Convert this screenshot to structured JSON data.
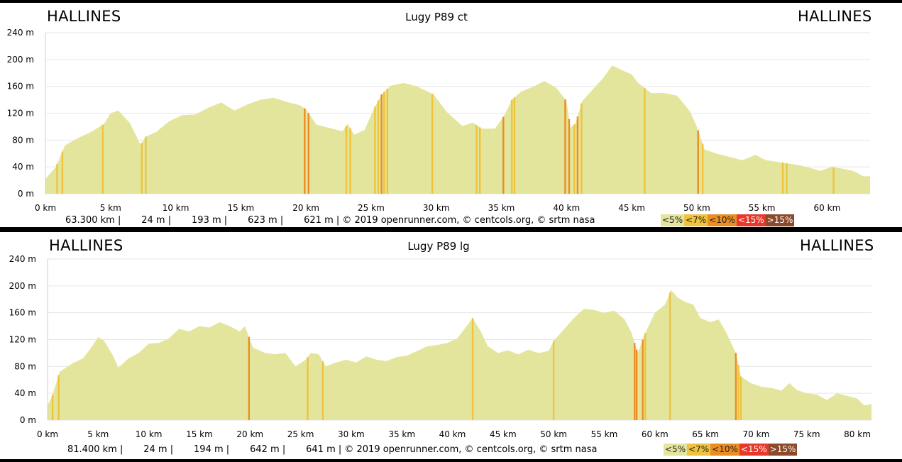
{
  "colors": {
    "fill": "#e4e59c",
    "grid": "#e6e6e6",
    "lt5": "#e4e59c",
    "lt7": "#efc33e",
    "lt10": "#ec8d22",
    "lt15": "#e8372b",
    "gt15": "#8c4a2b"
  },
  "legend": [
    "<5%",
    "<7%",
    "<10%",
    "<15%",
    ">15%"
  ],
  "chart_data": [
    {
      "type": "area",
      "title": "Lugy P89 ct",
      "start_label": "HALLINES",
      "end_label": "HALLINES",
      "x_unit": "km",
      "y_unit": "m",
      "xlim": [
        0,
        63.3
      ],
      "ylim": [
        0,
        240
      ],
      "xticks": [
        0,
        5,
        10,
        15,
        20,
        25,
        30,
        35,
        40,
        45,
        50,
        55,
        60
      ],
      "xtick_labels": [
        "0 km",
        "5 km",
        "10 km",
        "15 km",
        "20 km",
        "25 km",
        "30 km",
        "35 km",
        "40 km",
        "45 km",
        "50 km",
        "55 km",
        "60 km"
      ],
      "yticks": [
        0,
        40,
        80,
        120,
        160,
        200,
        240
      ],
      "ytick_labels": [
        "0 m",
        "40 m",
        "80 m",
        "120 m",
        "160 m",
        "200 m",
        "240 m"
      ],
      "grid": true,
      "footer": "63.300 km |       24 m |       193 m |       623 m |       621 m | © 2019 openrunner.com, © centcols.org, © srtm nasa",
      "profile": [
        [
          0,
          22
        ],
        [
          0.8,
          40
        ],
        [
          1.5,
          72
        ],
        [
          2.5,
          83
        ],
        [
          3.5,
          92
        ],
        [
          4.5,
          104
        ],
        [
          5.0,
          120
        ],
        [
          5.6,
          124
        ],
        [
          6.5,
          105
        ],
        [
          7.3,
          73
        ],
        [
          7.7,
          85
        ],
        [
          8.5,
          92
        ],
        [
          9.5,
          108
        ],
        [
          10.5,
          117
        ],
        [
          11.5,
          118
        ],
        [
          12.5,
          128
        ],
        [
          13.5,
          136
        ],
        [
          14.5,
          124
        ],
        [
          15.5,
          133
        ],
        [
          16.5,
          140
        ],
        [
          17.5,
          143
        ],
        [
          18.5,
          137
        ],
        [
          19.5,
          132
        ],
        [
          20.0,
          126
        ],
        [
          20.8,
          103
        ],
        [
          21.8,
          98
        ],
        [
          22.8,
          93
        ],
        [
          23.2,
          104
        ],
        [
          23.7,
          88
        ],
        [
          24.5,
          95
        ],
        [
          25.2,
          126
        ],
        [
          25.8,
          148
        ],
        [
          26.5,
          161
        ],
        [
          27.5,
          165
        ],
        [
          28.5,
          160
        ],
        [
          29.8,
          148
        ],
        [
          30.8,
          122
        ],
        [
          32.0,
          101
        ],
        [
          32.8,
          106
        ],
        [
          33.5,
          97
        ],
        [
          34.5,
          97
        ],
        [
          35.2,
          116
        ],
        [
          35.8,
          140
        ],
        [
          36.5,
          152
        ],
        [
          37.5,
          160
        ],
        [
          38.3,
          168
        ],
        [
          39.2,
          158
        ],
        [
          40.0,
          138
        ],
        [
          40.3,
          98
        ],
        [
          40.7,
          105
        ],
        [
          41.2,
          138
        ],
        [
          42.0,
          155
        ],
        [
          42.8,
          172
        ],
        [
          43.5,
          191
        ],
        [
          44.5,
          182
        ],
        [
          45.0,
          178
        ],
        [
          45.5,
          165
        ],
        [
          46.5,
          150
        ],
        [
          47.5,
          150
        ],
        [
          48.5,
          146
        ],
        [
          49.5,
          122
        ],
        [
          50.0,
          100
        ],
        [
          50.6,
          66
        ],
        [
          51.5,
          60
        ],
        [
          52.5,
          55
        ],
        [
          53.5,
          50
        ],
        [
          54.5,
          58
        ],
        [
          55.3,
          50
        ],
        [
          56.0,
          48
        ],
        [
          57.0,
          45
        ],
        [
          58.0,
          42
        ],
        [
          58.8,
          38
        ],
        [
          59.5,
          34
        ],
        [
          60.3,
          40
        ],
        [
          61.0,
          38
        ],
        [
          62.0,
          34
        ],
        [
          62.8,
          26
        ],
        [
          63.3,
          26
        ]
      ],
      "steep": [
        [
          0.9,
          "lt7"
        ],
        [
          1.3,
          "lt7"
        ],
        [
          4.4,
          "lt7"
        ],
        [
          7.4,
          "lt7"
        ],
        [
          7.7,
          "lt7"
        ],
        [
          19.9,
          "lt10"
        ],
        [
          20.2,
          "lt10"
        ],
        [
          23.1,
          "lt7"
        ],
        [
          23.4,
          "lt7"
        ],
        [
          25.3,
          "lt7"
        ],
        [
          25.55,
          "lt7"
        ],
        [
          25.8,
          "lt10"
        ],
        [
          26.0,
          "lt7"
        ],
        [
          26.25,
          "lt7"
        ],
        [
          29.7,
          "lt7"
        ],
        [
          33.1,
          "lt7"
        ],
        [
          33.35,
          "lt7"
        ],
        [
          35.15,
          "lt10"
        ],
        [
          35.8,
          "lt7"
        ],
        [
          36.0,
          "lt7"
        ],
        [
          39.9,
          "lt10"
        ],
        [
          40.2,
          "lt10"
        ],
        [
          40.6,
          "lt7"
        ],
        [
          40.85,
          "lt10"
        ],
        [
          41.15,
          "lt7"
        ],
        [
          46.0,
          "lt7"
        ],
        [
          50.1,
          "lt10"
        ],
        [
          50.45,
          "lt7"
        ],
        [
          56.6,
          "lt7"
        ],
        [
          56.9,
          "lt7"
        ],
        [
          60.5,
          "lt7"
        ]
      ]
    },
    {
      "type": "area",
      "title": "Lugy P89 lg",
      "start_label": "HALLINES",
      "end_label": "HALLINES",
      "x_unit": "km",
      "y_unit": "m",
      "xlim": [
        0,
        81.4
      ],
      "ylim": [
        0,
        240
      ],
      "xticks": [
        0,
        5,
        10,
        15,
        20,
        25,
        30,
        35,
        40,
        45,
        50,
        55,
        60,
        65,
        70,
        75,
        80
      ],
      "xtick_labels": [
        "0 km",
        "5 km",
        "10 km",
        "15 km",
        "20 km",
        "25 km",
        "30 km",
        "35 km",
        "40 km",
        "45 km",
        "50 km",
        "55 km",
        "60 km",
        "65 km",
        "70 km",
        "75 km",
        "80 km"
      ],
      "yticks": [
        0,
        40,
        80,
        120,
        160,
        200,
        240
      ],
      "ytick_labels": [
        "0 m",
        "40 m",
        "80 m",
        "120 m",
        "160 m",
        "200 m",
        "240 m"
      ],
      "grid": true,
      "footer": "81.400 km |       24 m |       194 m |       642 m |       641 m | © 2019 openrunner.com, © centcols.org, © srtm nasa",
      "profile": [
        [
          0,
          22
        ],
        [
          0.5,
          38
        ],
        [
          1.2,
          72
        ],
        [
          2.5,
          85
        ],
        [
          3.5,
          92
        ],
        [
          4.5,
          112
        ],
        [
          5.0,
          124
        ],
        [
          5.6,
          118
        ],
        [
          6.5,
          95
        ],
        [
          7.0,
          78
        ],
        [
          8.0,
          92
        ],
        [
          9.0,
          100
        ],
        [
          10.0,
          114
        ],
        [
          11.0,
          115
        ],
        [
          12.0,
          122
        ],
        [
          13.0,
          136
        ],
        [
          14.0,
          132
        ],
        [
          15.0,
          140
        ],
        [
          16.0,
          138
        ],
        [
          17.0,
          146
        ],
        [
          18.0,
          140
        ],
        [
          19.0,
          132
        ],
        [
          19.5,
          140
        ],
        [
          20.3,
          108
        ],
        [
          21.5,
          100
        ],
        [
          22.5,
          98
        ],
        [
          23.5,
          100
        ],
        [
          24.5,
          80
        ],
        [
          25.5,
          90
        ],
        [
          26.0,
          100
        ],
        [
          26.8,
          98
        ],
        [
          27.5,
          80
        ],
        [
          28.5,
          86
        ],
        [
          29.5,
          90
        ],
        [
          30.5,
          86
        ],
        [
          31.5,
          95
        ],
        [
          32.5,
          90
        ],
        [
          33.5,
          88
        ],
        [
          34.5,
          94
        ],
        [
          35.5,
          96
        ],
        [
          36.5,
          103
        ],
        [
          37.5,
          110
        ],
        [
          38.5,
          112
        ],
        [
          39.5,
          115
        ],
        [
          40.5,
          122
        ],
        [
          41.5,
          142
        ],
        [
          42.0,
          152
        ],
        [
          42.8,
          132
        ],
        [
          43.5,
          110
        ],
        [
          44.5,
          100
        ],
        [
          45.5,
          104
        ],
        [
          46.5,
          98
        ],
        [
          47.5,
          105
        ],
        [
          48.5,
          100
        ],
        [
          49.5,
          103
        ],
        [
          50.0,
          118
        ],
        [
          51.0,
          135
        ],
        [
          52.0,
          152
        ],
        [
          53.0,
          166
        ],
        [
          54.0,
          164
        ],
        [
          55.0,
          160
        ],
        [
          56.0,
          163
        ],
        [
          57.0,
          150
        ],
        [
          57.7,
          130
        ],
        [
          58.3,
          100
        ],
        [
          59.0,
          128
        ],
        [
          60.0,
          160
        ],
        [
          61.0,
          172
        ],
        [
          61.6,
          194
        ],
        [
          62.3,
          182
        ],
        [
          63.0,
          176
        ],
        [
          63.8,
          172
        ],
        [
          64.5,
          152
        ],
        [
          65.5,
          146
        ],
        [
          66.3,
          150
        ],
        [
          67.0,
          132
        ],
        [
          68.0,
          100
        ],
        [
          68.5,
          65
        ],
        [
          69.5,
          55
        ],
        [
          70.5,
          50
        ],
        [
          71.5,
          48
        ],
        [
          72.5,
          44
        ],
        [
          73.3,
          55
        ],
        [
          74.0,
          45
        ],
        [
          75.0,
          40
        ],
        [
          76.0,
          38
        ],
        [
          77.0,
          30
        ],
        [
          78.0,
          40
        ],
        [
          79.0,
          36
        ],
        [
          80.0,
          32
        ],
        [
          80.7,
          22
        ],
        [
          81.4,
          24
        ]
      ],
      "steep": [
        [
          0.5,
          "lt7"
        ],
        [
          1.1,
          "lt7"
        ],
        [
          19.9,
          "lt10"
        ],
        [
          25.7,
          "lt7"
        ],
        [
          27.2,
          "lt7"
        ],
        [
          42.0,
          "lt7"
        ],
        [
          50.0,
          "lt7"
        ],
        [
          58.0,
          "lt10"
        ],
        [
          58.2,
          "lt10"
        ],
        [
          58.8,
          "lt10"
        ],
        [
          59.05,
          "lt7"
        ],
        [
          61.5,
          "lt7"
        ],
        [
          68.0,
          "lt10"
        ],
        [
          68.25,
          "lt7"
        ],
        [
          68.5,
          "lt7"
        ]
      ]
    }
  ]
}
